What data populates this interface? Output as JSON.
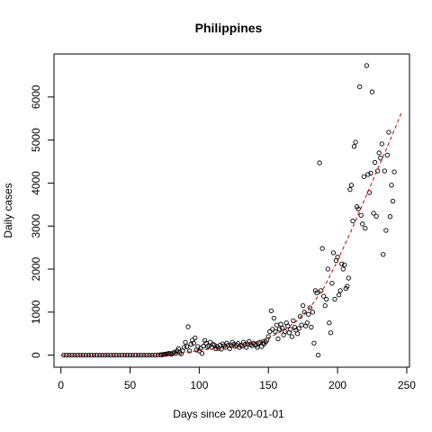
{
  "chart_data": {
    "type": "scatter",
    "title": "Philippines",
    "xlabel": "Days since 2020-01-01",
    "ylabel": "Daily cases",
    "xlim": [
      -5,
      252
    ],
    "ylim": [
      -280,
      7000
    ],
    "x_ticks": [
      0,
      50,
      100,
      150,
      200,
      250
    ],
    "y_ticks": [
      0,
      1000,
      2000,
      3000,
      4000,
      5000,
      6000
    ],
    "grid": false,
    "legend": "none",
    "point_color": "#000000",
    "fit_color": "#cc0000",
    "fit_style": "dashed",
    "series": [
      {
        "points": [
          [
            2,
            0
          ],
          [
            4,
            0
          ],
          [
            6,
            0
          ],
          [
            8,
            0
          ],
          [
            10,
            0
          ],
          [
            12,
            0
          ],
          [
            14,
            0
          ],
          [
            16,
            0
          ],
          [
            18,
            0
          ],
          [
            20,
            0
          ],
          [
            22,
            0
          ],
          [
            24,
            0
          ],
          [
            26,
            0
          ],
          [
            28,
            0
          ],
          [
            30,
            0
          ],
          [
            32,
            0
          ],
          [
            34,
            0
          ],
          [
            36,
            0
          ],
          [
            38,
            0
          ],
          [
            40,
            0
          ],
          [
            42,
            0
          ],
          [
            44,
            0
          ],
          [
            46,
            0
          ],
          [
            48,
            0
          ],
          [
            50,
            0
          ],
          [
            52,
            0
          ],
          [
            54,
            0
          ],
          [
            56,
            0
          ],
          [
            58,
            0
          ],
          [
            60,
            0
          ],
          [
            62,
            0
          ],
          [
            64,
            0
          ],
          [
            66,
            0
          ],
          [
            68,
            0
          ],
          [
            70,
            5
          ],
          [
            72,
            10
          ],
          [
            73,
            8
          ],
          [
            74,
            15
          ],
          [
            75,
            20
          ],
          [
            76,
            25
          ],
          [
            77,
            30
          ],
          [
            78,
            40
          ],
          [
            79,
            35
          ],
          [
            80,
            20
          ],
          [
            81,
            50
          ],
          [
            82,
            70
          ],
          [
            83,
            40
          ],
          [
            84,
            100
          ],
          [
            85,
            150
          ],
          [
            86,
            60
          ],
          [
            87,
            30
          ],
          [
            88,
            100
          ],
          [
            89,
            180
          ],
          [
            90,
            300
          ],
          [
            91,
            200
          ],
          [
            92,
            660
          ],
          [
            93,
            100
          ],
          [
            94,
            250
          ],
          [
            95,
            350
          ],
          [
            96,
            280
          ],
          [
            97,
            400
          ],
          [
            98,
            120
          ],
          [
            99,
            200
          ],
          [
            100,
            100
          ],
          [
            101,
            160
          ],
          [
            102,
            40
          ],
          [
            103,
            210
          ],
          [
            104,
            340
          ],
          [
            105,
            280
          ],
          [
            106,
            200
          ],
          [
            107,
            220
          ],
          [
            108,
            300
          ],
          [
            109,
            180
          ],
          [
            110,
            250
          ],
          [
            111,
            230
          ],
          [
            112,
            150
          ],
          [
            113,
            200
          ],
          [
            114,
            160
          ],
          [
            115,
            230
          ],
          [
            116,
            140
          ],
          [
            117,
            260
          ],
          [
            118,
            220
          ],
          [
            119,
            180
          ],
          [
            120,
            280
          ],
          [
            121,
            230
          ],
          [
            122,
            150
          ],
          [
            123,
            220
          ],
          [
            124,
            300
          ],
          [
            125,
            250
          ],
          [
            126,
            200
          ],
          [
            127,
            230
          ],
          [
            128,
            270
          ],
          [
            129,
            180
          ],
          [
            130,
            230
          ],
          [
            131,
            210
          ],
          [
            132,
            300
          ],
          [
            133,
            250
          ],
          [
            134,
            180
          ],
          [
            135,
            260
          ],
          [
            136,
            320
          ],
          [
            137,
            250
          ],
          [
            138,
            220
          ],
          [
            139,
            280
          ],
          [
            140,
            250
          ],
          [
            141,
            230
          ],
          [
            142,
            180
          ],
          [
            143,
            280
          ],
          [
            144,
            300
          ],
          [
            145,
            200
          ],
          [
            146,
            280
          ],
          [
            147,
            260
          ],
          [
            148,
            310
          ],
          [
            149,
            350
          ],
          [
            150,
            430
          ],
          [
            151,
            550
          ],
          [
            152,
            1030
          ],
          [
            153,
            600
          ],
          [
            154,
            860
          ],
          [
            155,
            550
          ],
          [
            156,
            700
          ],
          [
            157,
            380
          ],
          [
            158,
            600
          ],
          [
            159,
            720
          ],
          [
            160,
            630
          ],
          [
            161,
            470
          ],
          [
            162,
            550
          ],
          [
            163,
            750
          ],
          [
            164,
            680
          ],
          [
            165,
            520
          ],
          [
            166,
            600
          ],
          [
            167,
            430
          ],
          [
            168,
            800
          ],
          [
            169,
            650
          ],
          [
            170,
            580
          ],
          [
            171,
            500
          ],
          [
            172,
            620
          ],
          [
            173,
            900
          ],
          [
            174,
            700
          ],
          [
            175,
            1150
          ],
          [
            176,
            1000
          ],
          [
            177,
            680
          ],
          [
            178,
            750
          ],
          [
            179,
            950
          ],
          [
            180,
            1100
          ],
          [
            181,
            650
          ],
          [
            182,
            1000
          ],
          [
            183,
            280
          ],
          [
            184,
            1500
          ],
          [
            185,
            1450
          ],
          [
            186,
            0
          ],
          [
            187,
            4470
          ],
          [
            188,
            1500
          ],
          [
            189,
            2480
          ],
          [
            190,
            1370
          ],
          [
            191,
            1150
          ],
          [
            192,
            1300
          ],
          [
            193,
            2000
          ],
          [
            194,
            750
          ],
          [
            195,
            520
          ],
          [
            196,
            1670
          ],
          [
            197,
            2380
          ],
          [
            198,
            1300
          ],
          [
            199,
            2200
          ],
          [
            200,
            2280
          ],
          [
            201,
            1400
          ],
          [
            202,
            1500
          ],
          [
            203,
            2120
          ],
          [
            204,
            2000
          ],
          [
            205,
            2100
          ],
          [
            206,
            1550
          ],
          [
            207,
            1600
          ],
          [
            208,
            1790
          ],
          [
            209,
            3850
          ],
          [
            210,
            3950
          ],
          [
            211,
            3120
          ],
          [
            212,
            4850
          ],
          [
            213,
            4950
          ],
          [
            214,
            3450
          ],
          [
            215,
            3400
          ],
          [
            216,
            6240
          ],
          [
            217,
            3250
          ],
          [
            218,
            3050
          ],
          [
            219,
            4150
          ],
          [
            220,
            2950
          ],
          [
            221,
            6730
          ],
          [
            222,
            4200
          ],
          [
            223,
            3780
          ],
          [
            224,
            4230
          ],
          [
            225,
            6120
          ],
          [
            226,
            3300
          ],
          [
            227,
            4480
          ],
          [
            228,
            3230
          ],
          [
            229,
            4280
          ],
          [
            230,
            4700
          ],
          [
            231,
            4580
          ],
          [
            232,
            4910
          ],
          [
            233,
            2340
          ],
          [
            234,
            4280
          ],
          [
            235,
            2900
          ],
          [
            236,
            4650
          ],
          [
            237,
            5180
          ],
          [
            238,
            3220
          ],
          [
            239,
            3950
          ],
          [
            240,
            3580
          ],
          [
            241,
            4260
          ]
        ]
      }
    ],
    "fit": {
      "x": [
        0,
        20,
        40,
        60,
        80,
        100,
        120,
        130,
        140,
        150,
        160,
        170,
        180,
        190,
        200,
        210,
        220,
        230,
        240,
        246
      ],
      "y": [
        0,
        0,
        0,
        0,
        20,
        110,
        190,
        240,
        300,
        400,
        560,
        780,
        1100,
        1560,
        2200,
        2900,
        3650,
        4400,
        5150,
        5620
      ]
    }
  }
}
